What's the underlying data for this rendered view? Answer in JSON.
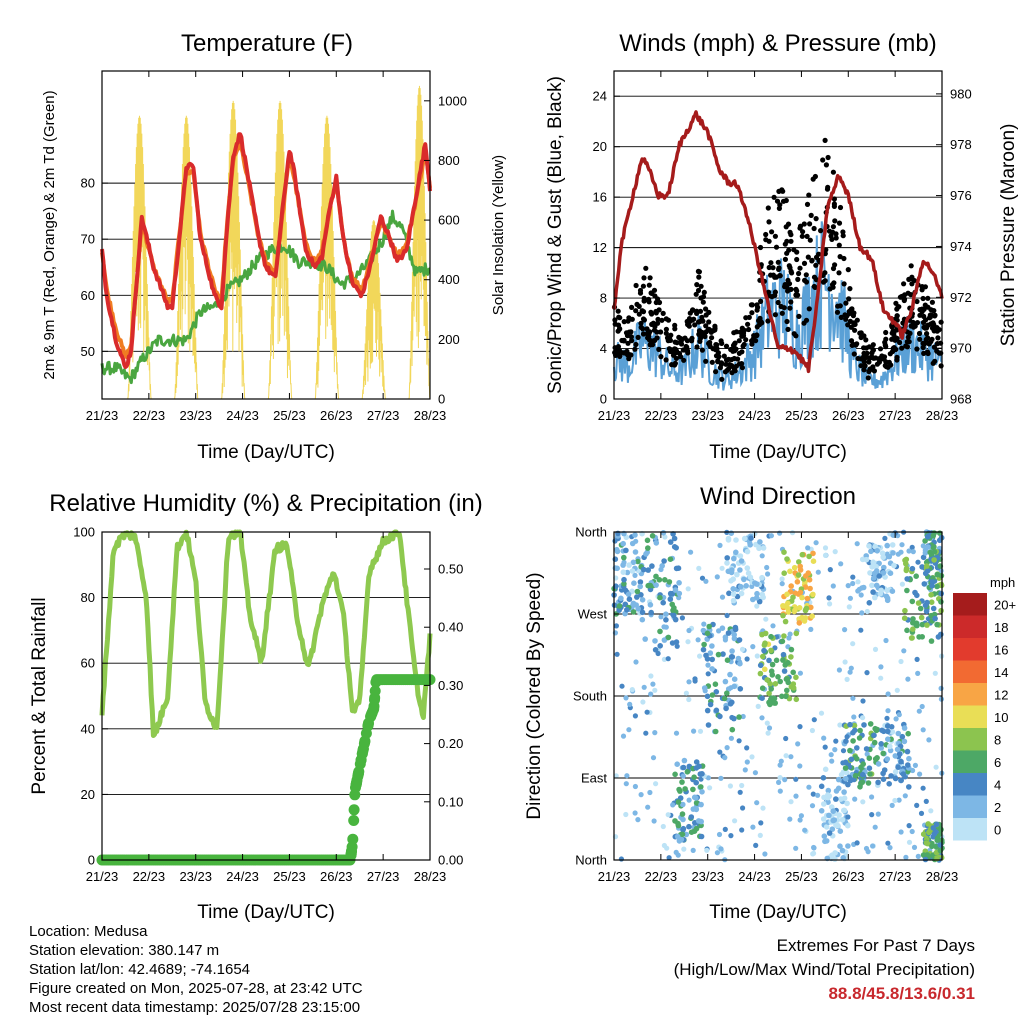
{
  "colors": {
    "t2m": "#d92b2b",
    "t9m": "#f07d22",
    "td": "#4aa640",
    "solar": "#f2d75a",
    "wind": "#5aa0d6",
    "gust": "#000000",
    "pressure": "#a51b1b",
    "rh": "#8ec94f",
    "rain": "#48b43e"
  },
  "x_axis": {
    "label": "Time (Day/UTC)",
    "ticks": [
      "21/23",
      "22/23",
      "23/23",
      "24/23",
      "25/23",
      "26/23",
      "27/23",
      "28/23"
    ],
    "range_days": [
      0,
      7
    ]
  },
  "chart_data": [
    {
      "id": "temperature",
      "type": "line",
      "title": "Temperature (F)",
      "xlabel": "Time (Day/UTC)",
      "ylabel": "2m & 9m T (Red, Orange) & 2m Td (Green)",
      "ylabel_right": "Solar Insolation (Yellow)",
      "ylim": [
        41.5,
        100
      ],
      "yticks": [
        50,
        60,
        70,
        80
      ],
      "ylim_right": [
        0,
        1100
      ],
      "yticks_right": [
        0,
        200,
        400,
        600,
        800,
        1000
      ],
      "series": [
        {
          "key": "t2m",
          "axis": "left",
          "x": [
            0,
            0.1,
            0.3,
            0.5,
            0.62,
            0.85,
            1.1,
            1.4,
            1.5,
            1.65,
            1.8,
            1.95,
            2.1,
            2.4,
            2.55,
            2.65,
            2.8,
            2.95,
            3.1,
            3.35,
            3.5,
            3.7,
            3.85,
            4.0,
            4.1,
            4.35,
            4.55,
            4.7,
            4.85,
            5.0,
            5.15,
            5.35,
            5.55,
            5.75,
            5.95,
            6.15,
            6.3,
            6.5,
            6.75,
            6.9,
            7.0
          ],
          "values": [
            68,
            60,
            52,
            47,
            50,
            74,
            65,
            58,
            58,
            70,
            83,
            83,
            70,
            60,
            58,
            70,
            85,
            89,
            82,
            70,
            65,
            63,
            75,
            86,
            82,
            68,
            65,
            67,
            75,
            81,
            70,
            62,
            60,
            66,
            74,
            70,
            66,
            68,
            80,
            87,
            79
          ]
        },
        {
          "key": "t9m",
          "axis": "left",
          "x": [
            0,
            0.1,
            0.3,
            0.5,
            0.62,
            0.85,
            1.1,
            1.4,
            1.5,
            1.65,
            1.8,
            1.95,
            2.1,
            2.4,
            2.55,
            2.65,
            2.8,
            2.95,
            3.1,
            3.35,
            3.5,
            3.7,
            3.85,
            4.0,
            4.1,
            4.35,
            4.55,
            4.7,
            4.85,
            5.0,
            5.15,
            5.35,
            5.55,
            5.75,
            5.95,
            6.15,
            6.3,
            6.5,
            6.75,
            6.9,
            7.0
          ],
          "values": [
            68,
            61,
            54,
            49,
            51,
            73,
            65,
            59,
            59,
            71,
            82,
            82,
            71,
            61,
            59,
            71,
            84,
            87,
            81,
            70,
            66,
            64,
            74,
            85,
            81,
            69,
            66,
            68,
            75,
            80,
            70,
            63,
            61,
            67,
            73,
            70,
            67,
            69,
            79,
            86,
            79
          ]
        },
        {
          "key": "td",
          "axis": "left",
          "x": [
            0,
            0.3,
            0.6,
            0.9,
            1.2,
            1.5,
            1.8,
            2.1,
            2.4,
            2.7,
            3.0,
            3.3,
            3.6,
            3.9,
            4.2,
            4.5,
            4.8,
            5.1,
            5.4,
            5.7,
            6.0,
            6.2,
            6.4,
            6.7,
            7.0
          ],
          "values": [
            47,
            47,
            45,
            49,
            52,
            52,
            52,
            57,
            58,
            61,
            63,
            66,
            68,
            69,
            66,
            66,
            65,
            62,
            63,
            66,
            70,
            74,
            72,
            64,
            65
          ]
        },
        {
          "key": "solar",
          "axis": "right",
          "days": [
            {
              "start": 0.55,
              "end": 1.05,
              "peak": 950
            },
            {
              "start": 1.55,
              "end": 2.05,
              "peak": 950
            },
            {
              "start": 2.55,
              "end": 3.05,
              "peak": 1000
            },
            {
              "start": 3.55,
              "end": 4.05,
              "peak": 1000
            },
            {
              "start": 4.55,
              "end": 5.05,
              "peak": 950
            },
            {
              "start": 5.55,
              "end": 6.05,
              "peak": 600
            },
            {
              "start": 6.55,
              "end": 7.0,
              "peak": 1050
            }
          ]
        }
      ]
    },
    {
      "id": "winds",
      "type": "scatter",
      "title": "Winds (mph) & Pressure (mb)",
      "xlabel": "Time (Day/UTC)",
      "ylabel": "Sonic/Prop Wind & Gust (Blue, Black)",
      "ylabel_right": "Station Pressure (Maroon)",
      "ylim": [
        0,
        26
      ],
      "yticks": [
        0,
        4,
        8,
        12,
        16,
        20,
        24
      ],
      "ylim_right": [
        968,
        980.9
      ],
      "yticks_right": [
        968,
        970,
        972,
        974,
        976,
        978,
        980
      ],
      "wind_profile": {
        "x": [
          0,
          0.3,
          0.6,
          0.9,
          1.2,
          1.5,
          1.8,
          2.1,
          2.4,
          2.7,
          3.0,
          3.3,
          3.6,
          3.9,
          4.2,
          4.5,
          4.8,
          5.1,
          5.4,
          5.7,
          6.0,
          6.3,
          6.6,
          6.9,
          7.0
        ],
        "values": [
          4,
          3.5,
          6,
          5,
          3,
          3,
          6,
          3,
          2,
          3,
          5,
          9,
          10,
          7,
          10,
          13,
          10,
          4,
          2,
          2,
          4,
          6,
          5,
          4,
          3
        ]
      },
      "pressure": {
        "x": [
          0,
          0.15,
          0.4,
          0.6,
          0.75,
          0.95,
          1.15,
          1.4,
          1.75,
          2.0,
          2.25,
          2.45,
          2.6,
          2.8,
          3.0,
          3.25,
          3.5,
          3.75,
          3.9,
          4.15,
          4.35,
          4.55,
          4.8,
          5.0,
          5.25,
          5.5,
          5.75,
          6.0,
          6.15,
          6.35,
          6.6,
          6.8,
          7.0
        ],
        "values": [
          971.5,
          974,
          976,
          977.5,
          977,
          976,
          976,
          978,
          979.2,
          978.5,
          977,
          976.5,
          976.5,
          975.5,
          974,
          972,
          970,
          970,
          969.8,
          969.2,
          972,
          975.5,
          976.8,
          976,
          974,
          973.5,
          971.5,
          971,
          970.5,
          971.5,
          973.5,
          973,
          972
        ]
      }
    },
    {
      "id": "humidity",
      "type": "line",
      "title": "Relative Humidity (%) & Precipitation (in)",
      "xlabel": "Time (Day/UTC)",
      "ylabel": "Percent & Total Rainfall",
      "ylim": [
        0,
        100
      ],
      "yticks": [
        0,
        20,
        40,
        60,
        80,
        100
      ],
      "ylim_right": [
        0,
        0.5636
      ],
      "yticks_right": [
        "0.00",
        "0.10",
        "0.20",
        "0.30",
        "0.40",
        "0.50"
      ],
      "series": [
        {
          "key": "rh",
          "x": [
            0,
            0.1,
            0.25,
            0.45,
            0.7,
            0.95,
            1.1,
            1.4,
            1.6,
            1.8,
            2.0,
            2.2,
            2.45,
            2.7,
            2.95,
            3.15,
            3.4,
            3.7,
            3.95,
            4.15,
            4.4,
            4.7,
            4.95,
            5.15,
            5.35,
            5.5,
            5.7,
            6.0,
            6.2,
            6.35,
            6.5,
            6.7,
            6.85,
            7.0
          ],
          "values": [
            45,
            65,
            95,
            99,
            99,
            80,
            37,
            50,
            95,
            100,
            85,
            48,
            40,
            99,
            100,
            75,
            60,
            95,
            96,
            75,
            58,
            78,
            88,
            75,
            45,
            48,
            88,
            97,
            99,
            100,
            80,
            55,
            43,
            68
          ]
        },
        {
          "key": "rain",
          "x": [
            0,
            5.3,
            5.35,
            5.4,
            5.5,
            5.6,
            5.7,
            5.8,
            5.85,
            6.5,
            7.0
          ],
          "values": [
            0,
            0,
            0.03,
            0.12,
            0.16,
            0.2,
            0.24,
            0.26,
            0.31,
            0.31,
            0.31
          ]
        }
      ]
    },
    {
      "id": "direction",
      "type": "scatter",
      "title": "Wind Direction",
      "xlabel": "Time (Day/UTC)",
      "ylabel": "Direction (Colored By Speed)",
      "yticks": [
        "North",
        "East",
        "South",
        "West",
        "North"
      ],
      "ylim": [
        0,
        360
      ],
      "legend": {
        "title": "mph",
        "labels": [
          "20+",
          "18",
          "16",
          "14",
          "12",
          "10",
          "8",
          "6",
          "4",
          "2",
          "0"
        ],
        "colors": [
          "#a51c1c",
          "#cc2a2a",
          "#e23b2d",
          "#f26a32",
          "#f8a545",
          "#e9de56",
          "#8cc44f",
          "#4da866",
          "#4786c4",
          "#7db7e5",
          "#bde3f6"
        ]
      },
      "clusters": [
        {
          "x": [
            0,
            0.6
          ],
          "dir": [
            270,
            360
          ],
          "speed": 3
        },
        {
          "x": [
            0.6,
            1.4
          ],
          "dir": [
            230,
            360
          ],
          "speed": 4
        },
        {
          "x": [
            1.3,
            1.9
          ],
          "dir": [
            20,
            110
          ],
          "speed": 4
        },
        {
          "x": [
            1.9,
            2.7
          ],
          "dir": [
            140,
            260
          ],
          "speed": 4
        },
        {
          "x": [
            2.4,
            3.2
          ],
          "dir": [
            280,
            360
          ],
          "speed": 1
        },
        {
          "x": [
            3.1,
            3.9
          ],
          "dir": [
            170,
            250
          ],
          "speed": 7
        },
        {
          "x": [
            3.6,
            4.3
          ],
          "dir": [
            260,
            340
          ],
          "speed": 10
        },
        {
          "x": [
            4.4,
            5.0
          ],
          "dir": [
            0,
            100
          ],
          "speed": 1
        },
        {
          "x": [
            4.9,
            5.6
          ],
          "dir": [
            80,
            150
          ],
          "speed": 5
        },
        {
          "x": [
            5.3,
            6.0
          ],
          "dir": [
            280,
            360
          ],
          "speed": 1
        },
        {
          "x": [
            5.6,
            6.3
          ],
          "dir": [
            80,
            150
          ],
          "speed": 3
        },
        {
          "x": [
            6.2,
            7.0
          ],
          "dir": [
            240,
            330
          ],
          "speed": 6
        },
        {
          "x": [
            6.6,
            7.0
          ],
          "dir": [
            300,
            360
          ],
          "speed": 5
        },
        {
          "x": [
            6.6,
            7.0
          ],
          "dir": [
            0,
            40
          ],
          "speed": 6
        }
      ]
    }
  ],
  "info": {
    "location": "Location: Medusa",
    "elevation": "Station elevation: 380.147 m",
    "latlon": "Station lat/lon: 42.4689; -74.1654",
    "created": "Figure created on Mon, 2025-07-28, at 23:42 UTC",
    "timestamp": "Most recent data timestamp: 2025/07/28 23:15:00"
  },
  "extremes": {
    "line1": "Extremes For Past 7 Days",
    "line2": "(High/Low/Max Wind/Total Precipitation)",
    "values": "88.8/45.8/13.6/0.31"
  }
}
